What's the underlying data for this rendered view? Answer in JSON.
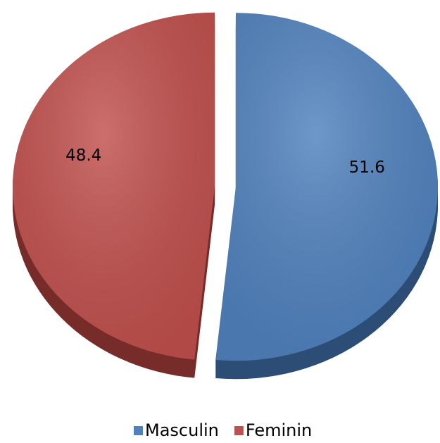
{
  "chart_data": {
    "type": "pie",
    "categories": [
      "Masculin",
      "Feminin"
    ],
    "values": [
      51.6,
      48.4
    ],
    "colors": [
      "#4f81bd",
      "#c0504d"
    ],
    "side_colors": [
      "#2c4d75",
      "#772c2a"
    ],
    "exploded": true,
    "legend": "bottom"
  }
}
